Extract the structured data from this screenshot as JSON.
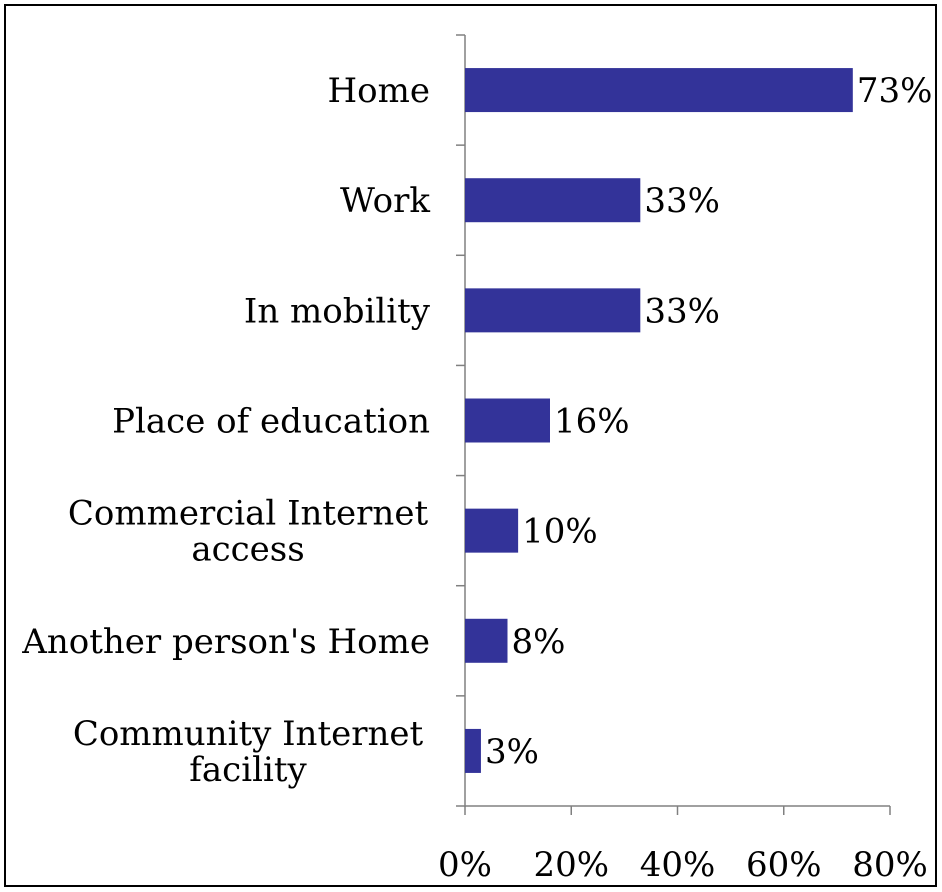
{
  "chart_data": {
    "type": "bar",
    "orientation": "horizontal",
    "title": "",
    "xlabel": "",
    "ylabel": "",
    "categories": [
      [
        "Home"
      ],
      [
        "Work"
      ],
      [
        "In mobility"
      ],
      [
        "Place of education"
      ],
      [
        "Commercial Internet",
        "access"
      ],
      [
        "Another person's Home"
      ],
      [
        "Community Internet",
        "facility"
      ]
    ],
    "values": [
      73,
      33,
      33,
      16,
      10,
      8,
      3
    ],
    "value_labels": [
      "73%",
      "33%",
      "33%",
      "16%",
      "10%",
      "8%",
      "3%"
    ],
    "xlim": [
      0,
      80
    ],
    "xticks": [
      0,
      20,
      40,
      60,
      80
    ],
    "xtick_labels": [
      "0%",
      "20%",
      "40%",
      "60%",
      "80%"
    ],
    "grid": false,
    "legend": "none",
    "bar_color": "#333399",
    "axis_color": "#808080"
  }
}
